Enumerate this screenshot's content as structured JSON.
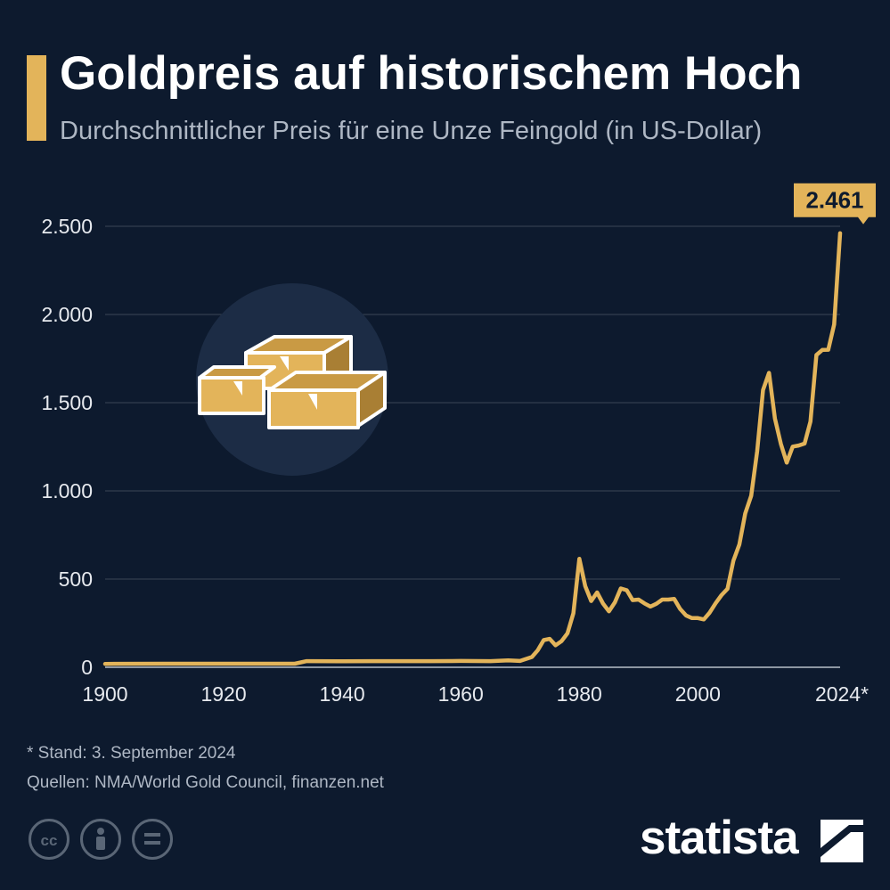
{
  "header": {
    "title": "Goldpreis auf historischem Hoch",
    "subtitle": "Durchschnittlicher Preis für eine Unze Feingold (in US-Dollar)"
  },
  "colors": {
    "background": "#0d1a2e",
    "accent": "#e3b45a",
    "icon_circle": "#1c2c45"
  },
  "illustration": {
    "icon": "gold-bars-icon"
  },
  "chart_data": {
    "type": "line",
    "title": "Goldpreis auf historischem Hoch",
    "subtitle": "Durchschnittlicher Preis für eine Unze Feingold (in US-Dollar)",
    "xlabel": "",
    "ylabel": "",
    "xlim": [
      1900,
      2024
    ],
    "ylim": [
      0,
      2500
    ],
    "x_ticks": [
      1900,
      1920,
      1940,
      1960,
      1980,
      2000,
      2024
    ],
    "x_tick_labels": [
      "1900",
      "1920",
      "1940",
      "1960",
      "1980",
      "2000",
      "2024*"
    ],
    "y_ticks": [
      0,
      500,
      1000,
      1500,
      2000,
      2500
    ],
    "y_tick_labels": [
      "0",
      "500",
      "1.000",
      "1.500",
      "2.000",
      "2.500"
    ],
    "grid": true,
    "series": [
      {
        "x": [
          1900,
          1910,
          1915,
          1920,
          1925,
          1930,
          1932,
          1934,
          1940,
          1945,
          1950,
          1955,
          1960,
          1965,
          1968,
          1970,
          1972,
          1973,
          1974,
          1975,
          1976,
          1977,
          1978,
          1979,
          1980,
          1981,
          1982,
          1983,
          1984,
          1985,
          1986,
          1987,
          1988,
          1989,
          1990,
          1991,
          1992,
          1993,
          1994,
          1995,
          1996,
          1997,
          1998,
          1999,
          2000,
          2001,
          2002,
          2003,
          2004,
          2005,
          2006,
          2007,
          2008,
          2009,
          2010,
          2011,
          2012,
          2013,
          2014,
          2015,
          2016,
          2017,
          2018,
          2019,
          2020,
          2021,
          2022,
          2023,
          2024
        ],
        "values": [
          19,
          20,
          20,
          20,
          20,
          20,
          20,
          35,
          34,
          35,
          35,
          35,
          36,
          35,
          39,
          36,
          58,
          97,
          154,
          161,
          125,
          148,
          193,
          306,
          615,
          460,
          376,
          424,
          361,
          317,
          368,
          447,
          437,
          381,
          384,
          362,
          344,
          360,
          384,
          384,
          388,
          331,
          294,
          279,
          279,
          271,
          310,
          363,
          409,
          445,
          604,
          696,
          872,
          972,
          1225,
          1572,
          1669,
          1411,
          1266,
          1160,
          1251,
          1257,
          1268,
          1393,
          1770,
          1799,
          1800,
          1943,
          2461
        ]
      }
    ],
    "annotations": [
      {
        "x": 2024,
        "y": 2461,
        "label": "2.461"
      }
    ],
    "footnote": "* Stand: 3. September 2024",
    "sources": "Quellen: NMA/World Gold Council, finanzen.net"
  },
  "footer": {
    "license_icons": [
      "cc-icon",
      "attribution-icon",
      "no-derivatives-icon"
    ],
    "brand": "statista",
    "brand_icon": "statista-logo-icon"
  }
}
